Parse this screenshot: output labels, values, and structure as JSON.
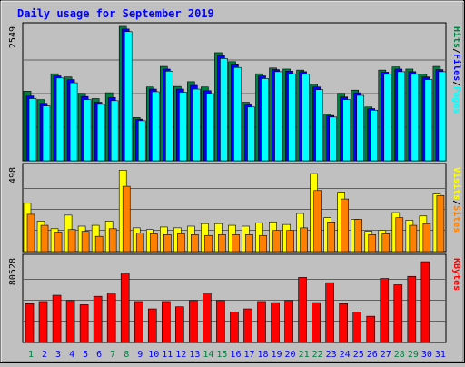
{
  "title": "Daily usage for September 2019",
  "colors": {
    "title": "#0000ff",
    "hits": "#008040",
    "files": "#0000ff",
    "pages": "#00ffff",
    "visits": "#ffff00",
    "sites": "#ff8000",
    "kbytes": "#ff0000",
    "panel_bg": "#c0c0c0",
    "weekend_label": "#008040",
    "weekday_label": "#0000ff"
  },
  "chart_data": [
    {
      "type": "bar",
      "categories": [
        "1",
        "2",
        "3",
        "4",
        "5",
        "6",
        "7",
        "8",
        "9",
        "10",
        "11",
        "12",
        "13",
        "14",
        "15",
        "16",
        "17",
        "18",
        "19",
        "20",
        "21",
        "22",
        "23",
        "24",
        "25",
        "26",
        "27",
        "28",
        "29",
        "30",
        "31"
      ],
      "weekend_days": [
        "1",
        "7",
        "8",
        "14",
        "15",
        "21",
        "22",
        "28",
        "29"
      ],
      "ylim": [
        0,
        2549
      ],
      "ylabel_max": "2549",
      "right_label": [
        "Pages",
        "/",
        "Files",
        "/",
        "Hits"
      ],
      "series": [
        {
          "name": "Hits",
          "values": [
            1320,
            1160,
            1650,
            1590,
            1280,
            1180,
            1290,
            2549,
            820,
            1400,
            1790,
            1410,
            1500,
            1400,
            2050,
            1880,
            1110,
            1650,
            1760,
            1740,
            1720,
            1450,
            890,
            1280,
            1340,
            1020,
            1720,
            1780,
            1740,
            1640,
            1790
          ],
          "colors_by": "hits"
        },
        {
          "name": "Files",
          "values": [
            1230,
            1090,
            1610,
            1540,
            1220,
            1110,
            1200,
            2500,
            790,
            1360,
            1740,
            1360,
            1430,
            1330,
            2000,
            1820,
            1060,
            1610,
            1730,
            1700,
            1690,
            1400,
            860,
            1210,
            1290,
            990,
            1680,
            1740,
            1690,
            1590,
            1730
          ]
        },
        {
          "name": "Pages",
          "values": [
            1180,
            1040,
            1570,
            1480,
            1160,
            1070,
            1140,
            2450,
            760,
            1310,
            1700,
            1300,
            1360,
            1270,
            1940,
            1770,
            1020,
            1560,
            1690,
            1650,
            1640,
            1350,
            830,
            1160,
            1240,
            960,
            1640,
            1690,
            1640,
            1540,
            1690
          ]
        }
      ]
    },
    {
      "type": "bar",
      "categories": [
        "1",
        "2",
        "3",
        "4",
        "5",
        "6",
        "7",
        "8",
        "9",
        "10",
        "11",
        "12",
        "13",
        "14",
        "15",
        "16",
        "17",
        "18",
        "19",
        "20",
        "21",
        "22",
        "23",
        "24",
        "25",
        "26",
        "27",
        "28",
        "29",
        "30",
        "31"
      ],
      "ylim": [
        0,
        498
      ],
      "ylabel_max": "498",
      "right_label": [
        "Sites",
        "/",
        "Visits"
      ],
      "series": [
        {
          "name": "Visits",
          "values": [
            285,
            180,
            135,
            215,
            150,
            155,
            180,
            480,
            140,
            130,
            145,
            140,
            150,
            165,
            165,
            155,
            150,
            170,
            175,
            160,
            225,
            460,
            200,
            350,
            190,
            120,
            125,
            230,
            185,
            210,
            340
          ]
        },
        {
          "name": "Sites",
          "values": [
            220,
            155,
            115,
            130,
            120,
            90,
            135,
            385,
            110,
            105,
            100,
            105,
            100,
            95,
            100,
            100,
            100,
            95,
            125,
            125,
            140,
            360,
            175,
            310,
            190,
            100,
            105,
            200,
            155,
            165,
            330
          ]
        }
      ]
    },
    {
      "type": "bar",
      "categories": [
        "1",
        "2",
        "3",
        "4",
        "5",
        "6",
        "7",
        "8",
        "9",
        "10",
        "11",
        "12",
        "13",
        "14",
        "15",
        "16",
        "17",
        "18",
        "19",
        "20",
        "21",
        "22",
        "23",
        "24",
        "25",
        "26",
        "27",
        "28",
        "29",
        "30",
        "31"
      ],
      "ylim": [
        0,
        80528
      ],
      "ylabel_max": "80528",
      "right_label": [
        "KBytes"
      ],
      "series": [
        {
          "name": "KBytes",
          "values": [
            37000,
            39000,
            45000,
            40000,
            36000,
            44000,
            47000,
            66000,
            39000,
            32000,
            39000,
            34000,
            40000,
            47000,
            40000,
            29000,
            32000,
            39000,
            38000,
            40000,
            62000,
            38000,
            57000,
            37000,
            29000,
            25000,
            61000,
            55000,
            63000,
            77000,
            0
          ]
        }
      ]
    }
  ]
}
